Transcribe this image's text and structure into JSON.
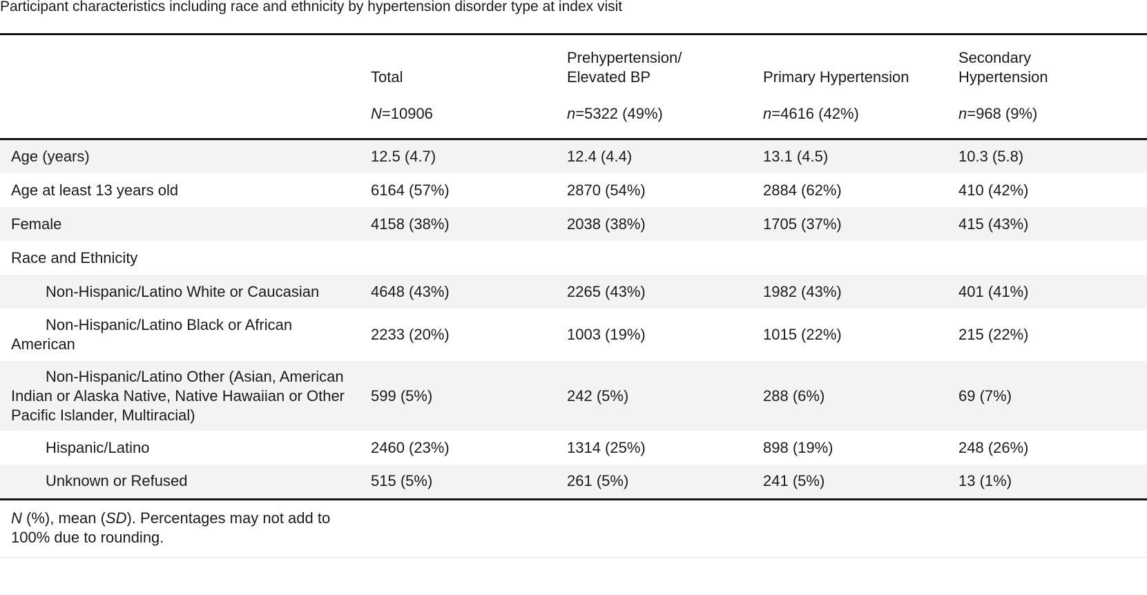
{
  "caption": "Participant characteristics including race and ethnicity by hypertension disorder type at index visit",
  "columns": [
    {
      "label": "",
      "n_prefix": "",
      "n_value": ""
    },
    {
      "label": "Total",
      "n_prefix": "N",
      "n_value": "=10906"
    },
    {
      "label": "Prehypertension/ Elevated BP",
      "n_prefix": "n",
      "n_value": "=5322 (49%)"
    },
    {
      "label": "Primary Hypertension",
      "n_prefix": "n",
      "n_value": "=4616 (42%)"
    },
    {
      "label": "Secondary Hypertension",
      "n_prefix": "n",
      "n_value": "=968 (9%)"
    }
  ],
  "rows": [
    {
      "label": "Age (years)",
      "values": [
        "12.5 (4.7)",
        "12.4 (4.4)",
        "13.1 (4.5)",
        "10.3 (5.8)"
      ]
    },
    {
      "label": "Age at least 13 years old",
      "values": [
        "6164 (57%)",
        "2870 (54%)",
        "2884 (62%)",
        "410 (42%)"
      ]
    },
    {
      "label": "Female",
      "values": [
        "4158 (38%)",
        "2038 (38%)",
        "1705 (37%)",
        "415 (43%)"
      ]
    },
    {
      "label": "Race and Ethnicity",
      "values": [
        "",
        "",
        "",
        ""
      ]
    },
    {
      "label": "Non-Hispanic/Latino White or Caucasian",
      "values": [
        "4648 (43%)",
        "2265 (43%)",
        "1982 (43%)",
        "401 (41%)"
      ]
    },
    {
      "label": "Non-Hispanic/Latino Black or African American",
      "values": [
        "2233 (20%)",
        "1003 (19%)",
        "1015 (22%)",
        "215 (22%)"
      ]
    },
    {
      "label": "Non-Hispanic/Latino Other (Asian, American Indian or Alaska Native, Native Hawaiian or Other Pacific Islander, Multiracial)",
      "values": [
        "599 (5%)",
        "242 (5%)",
        "288 (6%)",
        "69 (7%)"
      ]
    },
    {
      "label": "Hispanic/Latino",
      "values": [
        "2460 (23%)",
        "1314 (25%)",
        "898 (19%)",
        "248 (26%)"
      ]
    },
    {
      "label": "Unknown or Refused",
      "values": [
        "515 (5%)",
        "261 (5%)",
        "241 (5%)",
        "13 (1%)"
      ]
    }
  ],
  "footnote": {
    "n_symbol": "N",
    "text_1": " (%), mean (",
    "sd_symbol": "SD",
    "text_2": "). Percentages may not add to 100% due to rounding."
  }
}
